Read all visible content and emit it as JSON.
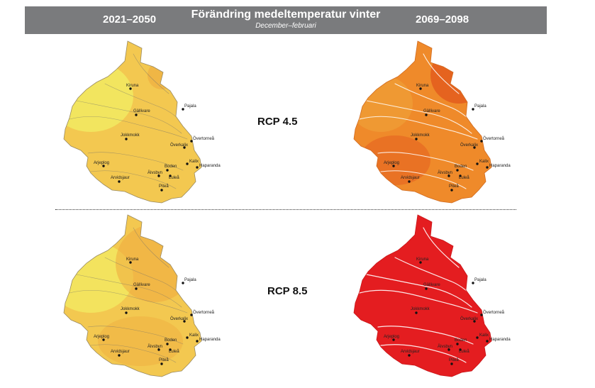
{
  "header": {
    "left_period": "2021–2050",
    "title": "Förändring medeltemperatur vinter",
    "subtitle": "December–februari",
    "right_period": "2069–2098"
  },
  "scenarios": [
    {
      "label": "RCP 4.5"
    },
    {
      "label": "RCP 8.5"
    }
  ],
  "cities": [
    "Kiruna",
    "Gällivare",
    "Pajala",
    "Jokkmokk",
    "Övertorneå",
    "Överkalix",
    "Arjeplog",
    "Kalix",
    "Haparanda",
    "Boden",
    "Arvidsjaur",
    "Älvsbyn",
    "Luleå",
    "Piteå"
  ],
  "colors": {
    "header_bg": "#7a7b7d",
    "near_term_light": "#f2e860",
    "near_term_mid": "#f3c850",
    "near_term_dark": "#efaa3e",
    "rcp45_late": "#ef8a2a",
    "rcp45_late_dark": "#e2551c",
    "rcp85_late": "#e41d20"
  }
}
